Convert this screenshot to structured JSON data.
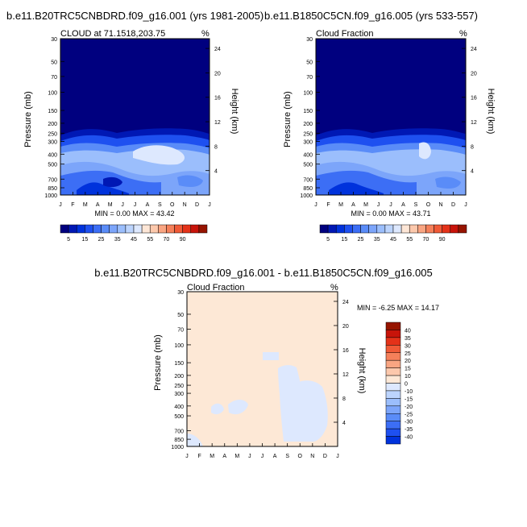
{
  "chart_data": [
    {
      "type": "heatmap",
      "title": "b.e11.B20TRC5CNBDRD.f09_g16.001 (yrs 1981-2005)",
      "subtitle_left": "CLOUD at 71.1518,203.75",
      "subtitle_right": "%",
      "ylabel": "Pressure (mb)",
      "ylabel_right": "Height (km)",
      "x_ticks": [
        "J",
        "F",
        "M",
        "A",
        "M",
        "J",
        "J",
        "A",
        "S",
        "O",
        "N",
        "D",
        "J"
      ],
      "y_ticks": [
        "30",
        "50",
        "70",
        "100",
        "150",
        "200",
        "250",
        "300",
        "400",
        "500",
        "700",
        "850",
        "1000"
      ],
      "y_ticks_right": [
        "24",
        "20",
        "16",
        "12",
        "8",
        "4"
      ],
      "stats": "MIN =  0.00 MAX = 43.42"
    },
    {
      "type": "heatmap",
      "title": "b.e11.B1850C5CN.f09_g16.005 (yrs 533-557)",
      "subtitle_left": "Cloud Fraction",
      "subtitle_right": "%",
      "ylabel": "Pressure (mb)",
      "ylabel_right": "Height (km)",
      "x_ticks": [
        "J",
        "F",
        "M",
        "A",
        "M",
        "J",
        "J",
        "A",
        "S",
        "O",
        "N",
        "D",
        "J"
      ],
      "y_ticks": [
        "30",
        "50",
        "70",
        "100",
        "150",
        "200",
        "250",
        "300",
        "400",
        "500",
        "700",
        "850",
        "1000"
      ],
      "y_ticks_right": [
        "24",
        "20",
        "16",
        "12",
        "8",
        "4"
      ],
      "stats": "MIN =  0.00 MAX = 43.71"
    },
    {
      "type": "heatmap",
      "title": "b.e11.B20TRC5CNBDRD.f09_g16.001 - b.e11.B1850C5CN.f09_g16.005",
      "subtitle_left": "Cloud Fraction",
      "subtitle_right": "%",
      "ylabel": "Pressure (mb)",
      "ylabel_right": "Height (km)",
      "x_ticks": [
        "J",
        "F",
        "M",
        "A",
        "M",
        "J",
        "J",
        "A",
        "S",
        "O",
        "N",
        "D",
        "J"
      ],
      "y_ticks": [
        "30",
        "50",
        "70",
        "100",
        "150",
        "200",
        "250",
        "300",
        "400",
        "500",
        "700",
        "850",
        "1000"
      ],
      "y_ticks_right": [
        "24",
        "20",
        "16",
        "12",
        "8",
        "4"
      ],
      "stats": "MIN = -6.25 MAX = 14.17"
    }
  ],
  "colorbar_abs": {
    "labels": [
      "5",
      "15",
      "25",
      "35",
      "45",
      "55",
      "70",
      "90"
    ],
    "colors": [
      "#00007f",
      "#0018b4",
      "#0032dc",
      "#1e50f0",
      "#3c6ef5",
      "#5a8cf8",
      "#7ca5fa",
      "#9bbefc",
      "#bcd4fd",
      "#dde8fe",
      "#fde6d6",
      "#fcc8ac",
      "#f9a582",
      "#f5805a",
      "#f05a37",
      "#e43219",
      "#c8140a",
      "#961400"
    ]
  },
  "colorbar_diff": {
    "labels": [
      "40",
      "35",
      "30",
      "25",
      "20",
      "15",
      "10",
      "0",
      "-10",
      "-15",
      "-20",
      "-25",
      "-30",
      "-35",
      "-40"
    ],
    "colors": [
      "#961400",
      "#c8140a",
      "#e43219",
      "#f05a37",
      "#f5805a",
      "#f9a582",
      "#fcc8ac",
      "#fde8d6",
      "#dde8fe",
      "#bcd4fd",
      "#9bbefc",
      "#7ca5fa",
      "#5a8cf8",
      "#3c6ef5",
      "#1e50f0",
      "#0032dc"
    ]
  }
}
